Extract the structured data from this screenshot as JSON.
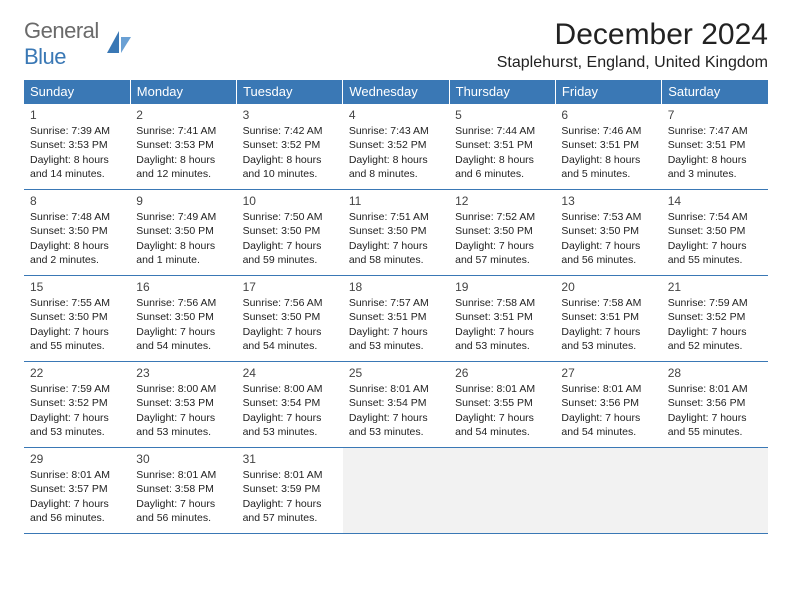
{
  "logo": {
    "text1": "General",
    "text2": "Blue"
  },
  "title": "December 2024",
  "location": "Staplehurst, England, United Kingdom",
  "colors": {
    "header_bg": "#3a78b5",
    "header_text": "#ffffff",
    "border": "#3a78b5",
    "empty_bg": "#f2f2f2",
    "text": "#222222",
    "logo_gray": "#6a6a6a",
    "logo_blue": "#3a78b5"
  },
  "weekdays": [
    "Sunday",
    "Monday",
    "Tuesday",
    "Wednesday",
    "Thursday",
    "Friday",
    "Saturday"
  ],
  "weeks": [
    [
      {
        "day": "1",
        "sunrise": "Sunrise: 7:39 AM",
        "sunset": "Sunset: 3:53 PM",
        "daylight1": "Daylight: 8 hours",
        "daylight2": "and 14 minutes."
      },
      {
        "day": "2",
        "sunrise": "Sunrise: 7:41 AM",
        "sunset": "Sunset: 3:53 PM",
        "daylight1": "Daylight: 8 hours",
        "daylight2": "and 12 minutes."
      },
      {
        "day": "3",
        "sunrise": "Sunrise: 7:42 AM",
        "sunset": "Sunset: 3:52 PM",
        "daylight1": "Daylight: 8 hours",
        "daylight2": "and 10 minutes."
      },
      {
        "day": "4",
        "sunrise": "Sunrise: 7:43 AM",
        "sunset": "Sunset: 3:52 PM",
        "daylight1": "Daylight: 8 hours",
        "daylight2": "and 8 minutes."
      },
      {
        "day": "5",
        "sunrise": "Sunrise: 7:44 AM",
        "sunset": "Sunset: 3:51 PM",
        "daylight1": "Daylight: 8 hours",
        "daylight2": "and 6 minutes."
      },
      {
        "day": "6",
        "sunrise": "Sunrise: 7:46 AM",
        "sunset": "Sunset: 3:51 PM",
        "daylight1": "Daylight: 8 hours",
        "daylight2": "and 5 minutes."
      },
      {
        "day": "7",
        "sunrise": "Sunrise: 7:47 AM",
        "sunset": "Sunset: 3:51 PM",
        "daylight1": "Daylight: 8 hours",
        "daylight2": "and 3 minutes."
      }
    ],
    [
      {
        "day": "8",
        "sunrise": "Sunrise: 7:48 AM",
        "sunset": "Sunset: 3:50 PM",
        "daylight1": "Daylight: 8 hours",
        "daylight2": "and 2 minutes."
      },
      {
        "day": "9",
        "sunrise": "Sunrise: 7:49 AM",
        "sunset": "Sunset: 3:50 PM",
        "daylight1": "Daylight: 8 hours",
        "daylight2": "and 1 minute."
      },
      {
        "day": "10",
        "sunrise": "Sunrise: 7:50 AM",
        "sunset": "Sunset: 3:50 PM",
        "daylight1": "Daylight: 7 hours",
        "daylight2": "and 59 minutes."
      },
      {
        "day": "11",
        "sunrise": "Sunrise: 7:51 AM",
        "sunset": "Sunset: 3:50 PM",
        "daylight1": "Daylight: 7 hours",
        "daylight2": "and 58 minutes."
      },
      {
        "day": "12",
        "sunrise": "Sunrise: 7:52 AM",
        "sunset": "Sunset: 3:50 PM",
        "daylight1": "Daylight: 7 hours",
        "daylight2": "and 57 minutes."
      },
      {
        "day": "13",
        "sunrise": "Sunrise: 7:53 AM",
        "sunset": "Sunset: 3:50 PM",
        "daylight1": "Daylight: 7 hours",
        "daylight2": "and 56 minutes."
      },
      {
        "day": "14",
        "sunrise": "Sunrise: 7:54 AM",
        "sunset": "Sunset: 3:50 PM",
        "daylight1": "Daylight: 7 hours",
        "daylight2": "and 55 minutes."
      }
    ],
    [
      {
        "day": "15",
        "sunrise": "Sunrise: 7:55 AM",
        "sunset": "Sunset: 3:50 PM",
        "daylight1": "Daylight: 7 hours",
        "daylight2": "and 55 minutes."
      },
      {
        "day": "16",
        "sunrise": "Sunrise: 7:56 AM",
        "sunset": "Sunset: 3:50 PM",
        "daylight1": "Daylight: 7 hours",
        "daylight2": "and 54 minutes."
      },
      {
        "day": "17",
        "sunrise": "Sunrise: 7:56 AM",
        "sunset": "Sunset: 3:50 PM",
        "daylight1": "Daylight: 7 hours",
        "daylight2": "and 54 minutes."
      },
      {
        "day": "18",
        "sunrise": "Sunrise: 7:57 AM",
        "sunset": "Sunset: 3:51 PM",
        "daylight1": "Daylight: 7 hours",
        "daylight2": "and 53 minutes."
      },
      {
        "day": "19",
        "sunrise": "Sunrise: 7:58 AM",
        "sunset": "Sunset: 3:51 PM",
        "daylight1": "Daylight: 7 hours",
        "daylight2": "and 53 minutes."
      },
      {
        "day": "20",
        "sunrise": "Sunrise: 7:58 AM",
        "sunset": "Sunset: 3:51 PM",
        "daylight1": "Daylight: 7 hours",
        "daylight2": "and 53 minutes."
      },
      {
        "day": "21",
        "sunrise": "Sunrise: 7:59 AM",
        "sunset": "Sunset: 3:52 PM",
        "daylight1": "Daylight: 7 hours",
        "daylight2": "and 52 minutes."
      }
    ],
    [
      {
        "day": "22",
        "sunrise": "Sunrise: 7:59 AM",
        "sunset": "Sunset: 3:52 PM",
        "daylight1": "Daylight: 7 hours",
        "daylight2": "and 53 minutes."
      },
      {
        "day": "23",
        "sunrise": "Sunrise: 8:00 AM",
        "sunset": "Sunset: 3:53 PM",
        "daylight1": "Daylight: 7 hours",
        "daylight2": "and 53 minutes."
      },
      {
        "day": "24",
        "sunrise": "Sunrise: 8:00 AM",
        "sunset": "Sunset: 3:54 PM",
        "daylight1": "Daylight: 7 hours",
        "daylight2": "and 53 minutes."
      },
      {
        "day": "25",
        "sunrise": "Sunrise: 8:01 AM",
        "sunset": "Sunset: 3:54 PM",
        "daylight1": "Daylight: 7 hours",
        "daylight2": "and 53 minutes."
      },
      {
        "day": "26",
        "sunrise": "Sunrise: 8:01 AM",
        "sunset": "Sunset: 3:55 PM",
        "daylight1": "Daylight: 7 hours",
        "daylight2": "and 54 minutes."
      },
      {
        "day": "27",
        "sunrise": "Sunrise: 8:01 AM",
        "sunset": "Sunset: 3:56 PM",
        "daylight1": "Daylight: 7 hours",
        "daylight2": "and 54 minutes."
      },
      {
        "day": "28",
        "sunrise": "Sunrise: 8:01 AM",
        "sunset": "Sunset: 3:56 PM",
        "daylight1": "Daylight: 7 hours",
        "daylight2": "and 55 minutes."
      }
    ],
    [
      {
        "day": "29",
        "sunrise": "Sunrise: 8:01 AM",
        "sunset": "Sunset: 3:57 PM",
        "daylight1": "Daylight: 7 hours",
        "daylight2": "and 56 minutes."
      },
      {
        "day": "30",
        "sunrise": "Sunrise: 8:01 AM",
        "sunset": "Sunset: 3:58 PM",
        "daylight1": "Daylight: 7 hours",
        "daylight2": "and 56 minutes."
      },
      {
        "day": "31",
        "sunrise": "Sunrise: 8:01 AM",
        "sunset": "Sunset: 3:59 PM",
        "daylight1": "Daylight: 7 hours",
        "daylight2": "and 57 minutes."
      },
      null,
      null,
      null,
      null
    ]
  ]
}
